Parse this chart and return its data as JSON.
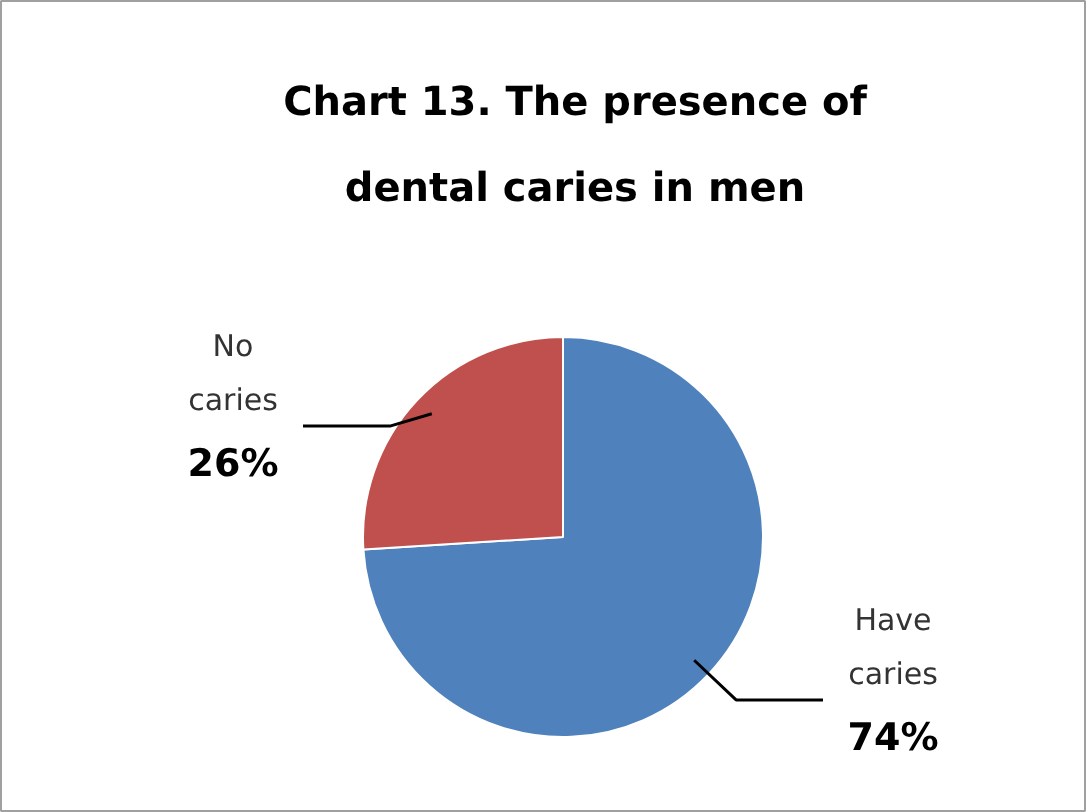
{
  "chart_data": {
    "type": "pie",
    "title": "Chart 13. The presence of dental caries in men",
    "categories": [
      "Have caries",
      "No caries"
    ],
    "values": [
      74,
      26
    ],
    "colors": [
      "#4f81bd",
      "#c0504d"
    ],
    "value_labels": [
      "74%",
      "26%"
    ]
  }
}
